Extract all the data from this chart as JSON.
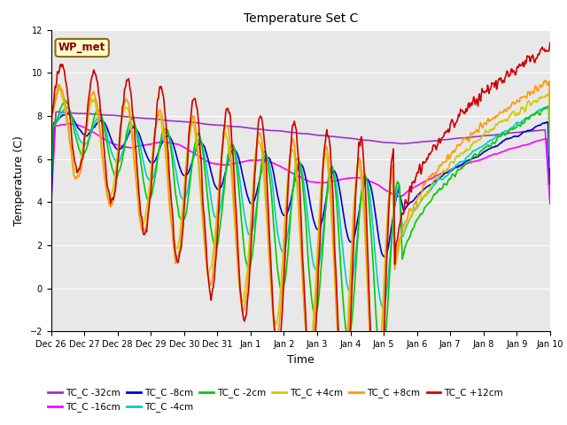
{
  "title": "Temperature Set C",
  "xlabel": "Time",
  "ylabel": "Temperature (C)",
  "ylim": [
    -2,
    12
  ],
  "annotation_text": "WP_met",
  "series_order": [
    "TC_C -32cm",
    "TC_C -16cm",
    "TC_C -8cm",
    "TC_C -4cm",
    "TC_C -2cm",
    "TC_C +4cm",
    "TC_C +8cm",
    "TC_C +12cm"
  ],
  "series_colors": {
    "TC_C -32cm": "#9933cc",
    "TC_C -16cm": "#ff00ff",
    "TC_C -8cm": "#0000cc",
    "TC_C -4cm": "#00cccc",
    "TC_C -2cm": "#00cc00",
    "TC_C +4cm": "#cccc00",
    "TC_C +8cm": "#ff9900",
    "TC_C +12cm": "#cc0000"
  },
  "xtick_labels": [
    "Dec 26",
    "Dec 27",
    "Dec 28",
    "Dec 29",
    "Dec 30",
    "Dec 31",
    "Jan 1",
    "Jan 2",
    "Jan 3",
    "Jan 4",
    "Jan 5",
    "Jan 6",
    "Jan 7",
    "Jan 8",
    "Jan 9",
    "Jan 10"
  ],
  "plot_bg_color": "#e8e8e8",
  "fig_bg_color": "#ffffff",
  "grid_color": "#ffffff",
  "lw": 1.2,
  "legend_ncol": 6,
  "title_fontsize": 10,
  "tick_fontsize": 7,
  "label_fontsize": 9,
  "legend_fontsize": 7.5
}
